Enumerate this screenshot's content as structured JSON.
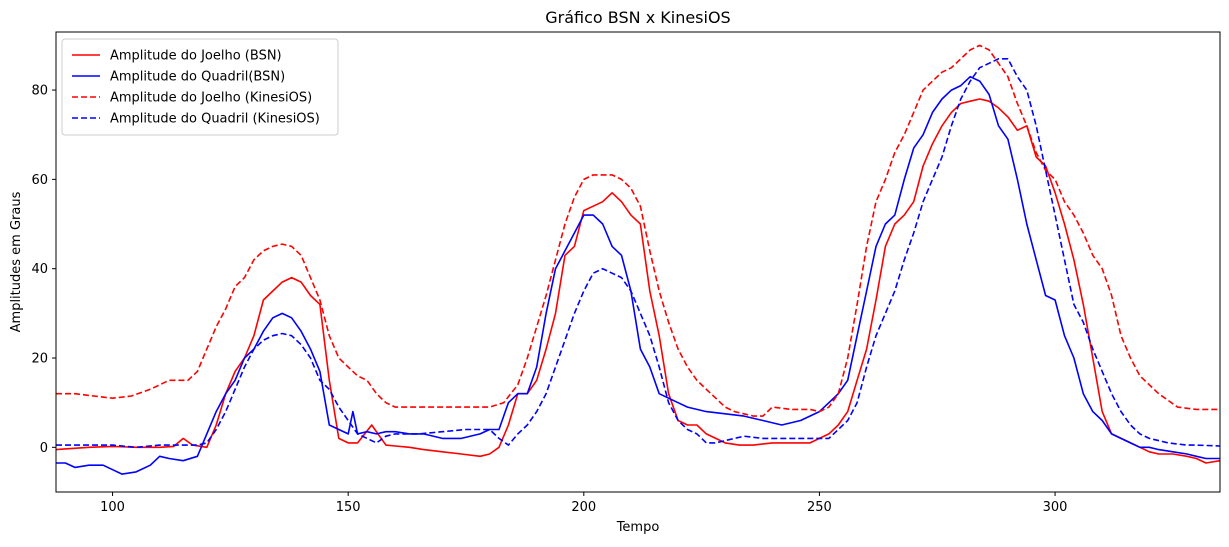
{
  "chart_data": {
    "type": "line",
    "title": "Gráfico BSN x KinesiOS",
    "xlabel": "Tempo",
    "ylabel": "Amplitudes em Graus",
    "xlim": [
      88,
      335
    ],
    "ylim": [
      -10,
      93
    ],
    "xticks": [
      100,
      150,
      200,
      250,
      300
    ],
    "yticks": [
      0,
      20,
      40,
      60,
      80
    ],
    "grid": false,
    "legend_position": "top-left",
    "series": [
      {
        "name": "Amplitude do Joelho (BSN)",
        "color": "#ff0000",
        "style": "solid",
        "x": [
          88,
          95,
          100,
          105,
          110,
          113,
          115,
          117,
          120,
          122,
          124,
          126,
          128,
          130,
          132,
          134,
          136,
          138,
          140,
          142,
          144,
          146,
          148,
          150,
          152,
          155,
          158,
          160,
          163,
          166,
          170,
          174,
          178,
          180,
          182,
          184,
          186,
          188,
          190,
          192,
          194,
          196,
          198,
          200,
          202,
          204,
          206,
          208,
          210,
          212,
          214,
          216,
          218,
          220,
          222,
          224,
          226,
          228,
          230,
          233,
          236,
          240,
          243,
          246,
          248,
          250,
          252,
          254,
          256,
          258,
          260,
          262,
          264,
          266,
          268,
          270,
          272,
          274,
          276,
          278,
          280,
          282,
          284,
          286,
          288,
          290,
          292,
          294,
          296,
          298,
          300,
          302,
          304,
          306,
          308,
          310,
          312,
          314,
          316,
          318,
          320,
          322,
          325,
          328,
          330,
          332,
          335
        ],
        "y": [
          -0.5,
          0,
          0.2,
          0,
          0,
          0.2,
          2,
          0.5,
          0,
          5,
          12,
          17,
          20,
          25,
          33,
          35,
          37,
          38,
          37,
          34,
          32,
          15,
          2,
          1,
          1,
          5,
          0.5,
          0.3,
          0,
          -0.5,
          -1,
          -1.5,
          -2,
          -1.5,
          0,
          5,
          12,
          12,
          15,
          22,
          30,
          43,
          45,
          53,
          54,
          55,
          57,
          55,
          52,
          50,
          35,
          25,
          12,
          6,
          5,
          5,
          3,
          2,
          1,
          0.5,
          0.5,
          1,
          1,
          1,
          1,
          2,
          3,
          5,
          8,
          15,
          22,
          33,
          45,
          50,
          52,
          55,
          63,
          68,
          72,
          75,
          77,
          77.5,
          78,
          77.5,
          76,
          74,
          71,
          72,
          65,
          63,
          57,
          50,
          42,
          32,
          20,
          8,
          3,
          2,
          1,
          0,
          -1,
          -1.5,
          -1.5,
          -2,
          -2.5,
          -3.5,
          -3
        ]
      },
      {
        "name": "Amplitude do Quadril(BSN)",
        "color": "#0000ff",
        "style": "solid",
        "x": [
          88,
          90,
          92,
          95,
          98,
          100,
          102,
          105,
          108,
          110,
          112,
          115,
          118,
          120,
          122,
          124,
          126,
          128,
          130,
          132,
          134,
          136,
          138,
          140,
          142,
          144,
          146,
          148,
          150,
          151,
          152,
          154,
          156,
          158,
          160,
          163,
          166,
          170,
          174,
          178,
          180,
          182,
          184,
          186,
          188,
          190,
          192,
          194,
          196,
          198,
          200,
          202,
          204,
          206,
          208,
          210,
          212,
          214,
          216,
          218,
          220,
          222,
          226,
          230,
          234,
          238,
          242,
          246,
          250,
          252,
          254,
          256,
          258,
          260,
          262,
          264,
          266,
          268,
          270,
          272,
          274,
          276,
          278,
          280,
          282,
          284,
          286,
          288,
          290,
          292,
          294,
          296,
          298,
          300,
          302,
          304,
          306,
          308,
          310,
          312,
          314,
          316,
          318,
          320,
          322,
          325,
          328,
          330,
          332,
          335
        ],
        "y": [
          -3.5,
          -3.5,
          -4.5,
          -4,
          -4,
          -5,
          -6,
          -5.5,
          -4,
          -2,
          -2.5,
          -3,
          -2,
          3,
          8,
          12,
          15,
          20,
          22,
          26,
          29,
          30,
          29,
          26,
          22,
          17,
          5,
          4,
          3,
          8,
          3,
          3.5,
          3,
          3.5,
          3.5,
          3,
          3,
          2,
          2,
          3,
          4,
          4,
          10,
          12,
          12,
          18,
          30,
          40,
          44,
          48,
          52,
          52,
          50,
          45,
          43,
          35,
          22,
          18,
          12,
          11,
          10,
          9,
          8,
          7.5,
          7,
          6,
          5,
          6,
          8,
          10,
          12,
          15,
          25,
          35,
          45,
          50,
          52,
          60,
          67,
          70,
          75,
          78,
          80,
          81,
          83,
          82,
          79,
          72,
          69,
          60,
          50,
          42,
          34,
          33,
          25,
          20,
          12,
          8,
          6,
          3,
          2,
          1,
          0,
          0,
          -0.5,
          -1,
          -1.5,
          -2,
          -2.5,
          -2.5
        ]
      },
      {
        "name": "Amplitude do Joelho (KinesiOS)",
        "color": "#ff0000",
        "style": "dashed",
        "x": [
          88,
          92,
          96,
          100,
          104,
          108,
          112,
          116,
          118,
          120,
          122,
          124,
          126,
          128,
          130,
          132,
          134,
          136,
          138,
          140,
          142,
          144,
          146,
          148,
          150,
          152,
          154,
          156,
          158,
          160,
          165,
          170,
          175,
          180,
          183,
          186,
          188,
          190,
          192,
          194,
          196,
          198,
          200,
          202,
          204,
          206,
          208,
          210,
          212,
          214,
          216,
          218,
          220,
          222,
          224,
          226,
          228,
          230,
          232,
          236,
          238,
          240,
          244,
          248,
          250,
          252,
          254,
          256,
          258,
          260,
          262,
          264,
          266,
          268,
          270,
          272,
          274,
          276,
          278,
          280,
          282,
          284,
          286,
          288,
          290,
          292,
          294,
          296,
          298,
          300,
          302,
          304,
          306,
          308,
          310,
          312,
          314,
          316,
          318,
          320,
          322,
          326,
          330,
          335
        ],
        "y": [
          12,
          12,
          11.5,
          11,
          11.5,
          13,
          15,
          15,
          17,
          22,
          27,
          31,
          36,
          38,
          42,
          44,
          45,
          45.5,
          45,
          43,
          38,
          33,
          25,
          20,
          18,
          16,
          15,
          12,
          10,
          9,
          9,
          9,
          9,
          9,
          10,
          14,
          20,
          27,
          34,
          42,
          50,
          56,
          60,
          61,
          61,
          61,
          60,
          58,
          54,
          44,
          35,
          28,
          22,
          18,
          15,
          13,
          11,
          9,
          8,
          7,
          7,
          9,
          8.5,
          8.5,
          8,
          9,
          12,
          20,
          32,
          45,
          55,
          60,
          66,
          70,
          75,
          80,
          82,
          84,
          85,
          87,
          89,
          90,
          89,
          86,
          83,
          77,
          72,
          66,
          62,
          60,
          55,
          52,
          48,
          43,
          40,
          34,
          25,
          20,
          16,
          14,
          12,
          9,
          8.5,
          8.5
        ]
      },
      {
        "name": "Amplitude do Quadril (KinesiOS)",
        "color": "#0000ff",
        "style": "dashed",
        "x": [
          88,
          95,
          100,
          105,
          110,
          115,
          118,
          120,
          122,
          124,
          126,
          128,
          130,
          132,
          134,
          136,
          138,
          140,
          142,
          144,
          146,
          148,
          150,
          152,
          154,
          156,
          158,
          160,
          165,
          170,
          175,
          180,
          182,
          184,
          186,
          188,
          190,
          192,
          194,
          196,
          198,
          200,
          202,
          204,
          206,
          208,
          210,
          212,
          214,
          216,
          218,
          220,
          222,
          224,
          226,
          228,
          230,
          234,
          238,
          242,
          246,
          250,
          252,
          254,
          256,
          258,
          260,
          262,
          264,
          266,
          268,
          270,
          272,
          274,
          276,
          278,
          280,
          282,
          284,
          286,
          288,
          290,
          292,
          294,
          296,
          298,
          300,
          302,
          304,
          306,
          308,
          310,
          312,
          314,
          316,
          318,
          320,
          324,
          328,
          330,
          335
        ],
        "y": [
          0.5,
          0.5,
          0.5,
          0,
          0.5,
          0.5,
          0.5,
          1,
          4,
          8,
          13,
          18,
          22,
          24,
          25,
          25.5,
          25,
          23,
          20,
          15,
          13,
          9,
          6,
          3,
          2,
          1,
          2.5,
          3,
          3,
          3.5,
          4,
          4,
          2,
          0.5,
          3,
          5,
          8,
          12,
          18,
          24,
          30,
          35,
          39,
          40,
          39,
          38,
          35,
          30,
          25,
          18,
          10,
          6,
          4,
          3,
          1,
          1,
          1.5,
          2.5,
          2,
          2,
          2,
          2,
          2,
          4,
          6,
          10,
          18,
          25,
          30,
          35,
          42,
          48,
          55,
          60,
          65,
          72,
          78,
          82,
          85,
          86,
          87,
          87,
          83,
          80,
          72,
          62,
          52,
          42,
          32,
          28,
          22,
          17,
          12,
          8,
          5,
          3,
          2,
          1,
          0.5,
          0.5,
          0.3
        ]
      }
    ]
  }
}
